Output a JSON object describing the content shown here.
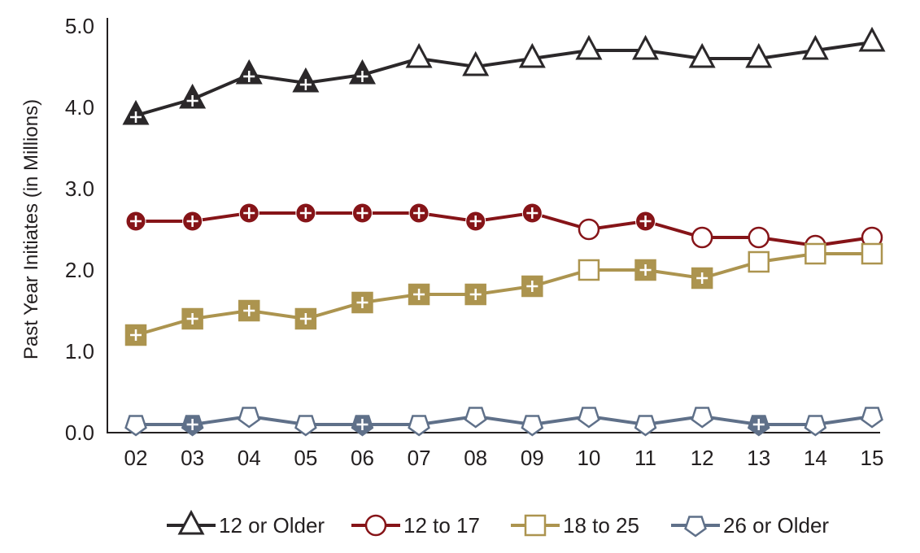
{
  "chart_data": {
    "type": "line",
    "title": "",
    "xlabel": "",
    "ylabel": "Past Year Initiates (in Millions)",
    "ylim": [
      0,
      5
    ],
    "yticks": [
      "0.0",
      "1.0",
      "2.0",
      "3.0",
      "4.0",
      "5.0"
    ],
    "categories": [
      "02",
      "03",
      "04",
      "05",
      "06",
      "07",
      "08",
      "09",
      "10",
      "11",
      "12",
      "13",
      "14",
      "15"
    ],
    "grid": false,
    "legend_position": "bottom",
    "series": [
      {
        "name": "12 or Older",
        "marker": "triangle",
        "color": "#2b282a",
        "values": [
          3.9,
          4.1,
          4.4,
          4.3,
          4.4,
          4.6,
          4.5,
          4.6,
          4.7,
          4.7,
          4.6,
          4.6,
          4.7,
          4.8
        ],
        "significant": [
          true,
          true,
          true,
          true,
          true,
          false,
          false,
          false,
          false,
          false,
          false,
          false,
          false,
          false
        ]
      },
      {
        "name": "12 to 17",
        "marker": "circle",
        "color": "#861418",
        "values": [
          2.6,
          2.6,
          2.7,
          2.7,
          2.7,
          2.7,
          2.6,
          2.7,
          2.5,
          2.6,
          2.4,
          2.4,
          2.3,
          2.4
        ],
        "significant": [
          true,
          true,
          true,
          true,
          true,
          true,
          true,
          true,
          false,
          true,
          false,
          false,
          false,
          false
        ]
      },
      {
        "name": "18 to 25",
        "marker": "square",
        "color": "#ac944f",
        "values": [
          1.2,
          1.4,
          1.5,
          1.4,
          1.6,
          1.7,
          1.7,
          1.8,
          2.0,
          2.0,
          1.9,
          2.1,
          2.2,
          2.2
        ],
        "significant": [
          true,
          true,
          true,
          true,
          true,
          true,
          true,
          true,
          false,
          true,
          true,
          false,
          false,
          false
        ]
      },
      {
        "name": "26 or Older",
        "marker": "pentagon",
        "color": "#5f7089",
        "values": [
          0.1,
          0.1,
          0.2,
          0.1,
          0.1,
          0.1,
          0.2,
          0.1,
          0.2,
          0.1,
          0.2,
          0.1,
          0.1,
          0.2
        ],
        "significant": [
          false,
          true,
          false,
          false,
          true,
          false,
          false,
          false,
          false,
          false,
          false,
          true,
          false,
          false
        ]
      }
    ]
  }
}
